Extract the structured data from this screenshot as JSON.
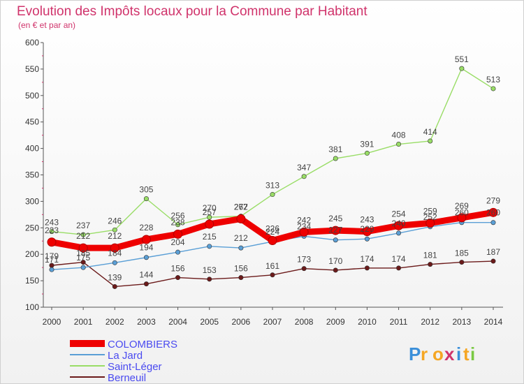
{
  "chart_data": {
    "type": "line",
    "title": "Evolution des Impôts locaux pour la Commune par Habitant",
    "subtitle": "(en € et par an)",
    "x": [
      "2000",
      "2001",
      "2002",
      "2003",
      "2004",
      "2005",
      "2006",
      "2007",
      "2008",
      "2009",
      "2010",
      "2011",
      "2012",
      "2013",
      "2014"
    ],
    "ylim": [
      100,
      600
    ],
    "yticks": [
      "100",
      "150",
      "200",
      "250",
      "300",
      "350",
      "400",
      "450",
      "500",
      "550",
      "600"
    ],
    "grid": false,
    "legend_position": "bottom-left",
    "series": [
      {
        "name": "COLOMBIERS",
        "color": "#ee0000",
        "values": [
          223,
          212,
          212,
          228,
          238,
          257,
          267,
          226,
          242,
          245,
          243,
          254,
          259,
          269,
          279
        ],
        "labels": [
          "223",
          "212",
          "212",
          "228",
          "238",
          "257",
          "267",
          "226",
          "242",
          "245",
          "243",
          "254",
          "259",
          "269",
          "279"
        ]
      },
      {
        "name": "La Jard",
        "color": "#5a9fd6",
        "values": [
          171,
          175,
          184,
          194,
          204,
          215,
          212,
          224,
          234,
          227,
          229,
          240,
          252,
          260,
          260
        ],
        "labels": [
          "171",
          "175",
          "184",
          "194",
          "204",
          "215",
          "212",
          "224",
          "234",
          "227",
          "229",
          "240",
          "252",
          "260",
          "260"
        ]
      },
      {
        "name": "Saint-Léger",
        "color": "#99dd66",
        "values": [
          243,
          237,
          246,
          305,
          256,
          270,
          272,
          313,
          347,
          381,
          391,
          408,
          414,
          551,
          513
        ],
        "labels": [
          "243",
          "237",
          "246",
          "305",
          "256",
          "270",
          "272",
          "313",
          "347",
          "381",
          "391",
          "408",
          "414",
          "551",
          "513"
        ]
      },
      {
        "name": "Berneuil",
        "color": "#6b1a1a",
        "values": [
          179,
          185,
          139,
          144,
          156,
          153,
          156,
          161,
          173,
          170,
          174,
          174,
          181,
          185,
          187
        ],
        "labels": [
          "179",
          "185",
          "139",
          "144",
          "156",
          "153",
          "156",
          "161",
          "173",
          "170",
          "174",
          "174",
          "181",
          "185",
          "187"
        ]
      }
    ]
  },
  "brand": {
    "letters": [
      "P",
      "r",
      "o",
      "x",
      "i",
      "t",
      "i"
    ],
    "colors": [
      "#3b8fd9",
      "#f5a623",
      "#f5a623",
      "#d0336b",
      "#3b8fd9",
      "#f5a623",
      "#7ac943"
    ]
  }
}
